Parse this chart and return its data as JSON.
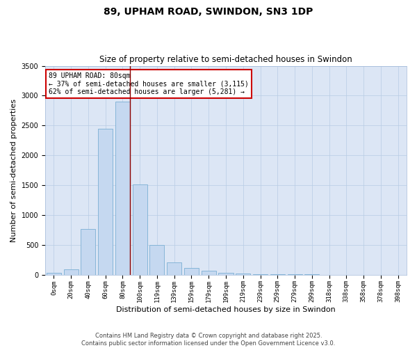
{
  "title": "89, UPHAM ROAD, SWINDON, SN3 1DP",
  "subtitle": "Size of property relative to semi-detached houses in Swindon",
  "xlabel": "Distribution of semi-detached houses by size in Swindon",
  "ylabel": "Number of semi-detached properties",
  "categories": [
    "0sqm",
    "20sqm",
    "40sqm",
    "60sqm",
    "80sqm",
    "100sqm",
    "119sqm",
    "139sqm",
    "159sqm",
    "179sqm",
    "199sqm",
    "219sqm",
    "239sqm",
    "259sqm",
    "279sqm",
    "299sqm",
    "318sqm",
    "338sqm",
    "358sqm",
    "378sqm",
    "398sqm"
  ],
  "values": [
    25,
    90,
    760,
    2450,
    2900,
    1510,
    500,
    210,
    110,
    60,
    30,
    15,
    5,
    3,
    2,
    1,
    0,
    0,
    0,
    0,
    0
  ],
  "bar_color": "#c5d8f0",
  "bar_edge_color": "#7bafd4",
  "highlight_index": 4,
  "highlight_line_color": "#8b0000",
  "annotation_text": "89 UPHAM ROAD: 80sqm\n← 37% of semi-detached houses are smaller (3,115)\n62% of semi-detached houses are larger (5,281) →",
  "annotation_box_color": "#ffffff",
  "annotation_box_edge_color": "#cc0000",
  "ylim": [
    0,
    3500
  ],
  "yticks": [
    0,
    500,
    1000,
    1500,
    2000,
    2500,
    3000,
    3500
  ],
  "background_color": "#dce6f5",
  "grid_color": "#b8cce4",
  "footer_text": "Contains HM Land Registry data © Crown copyright and database right 2025.\nContains public sector information licensed under the Open Government Licence v3.0.",
  "title_fontsize": 10,
  "subtitle_fontsize": 8.5,
  "tick_fontsize": 6.5,
  "ylabel_fontsize": 8,
  "xlabel_fontsize": 8,
  "annotation_fontsize": 7,
  "footer_fontsize": 6
}
